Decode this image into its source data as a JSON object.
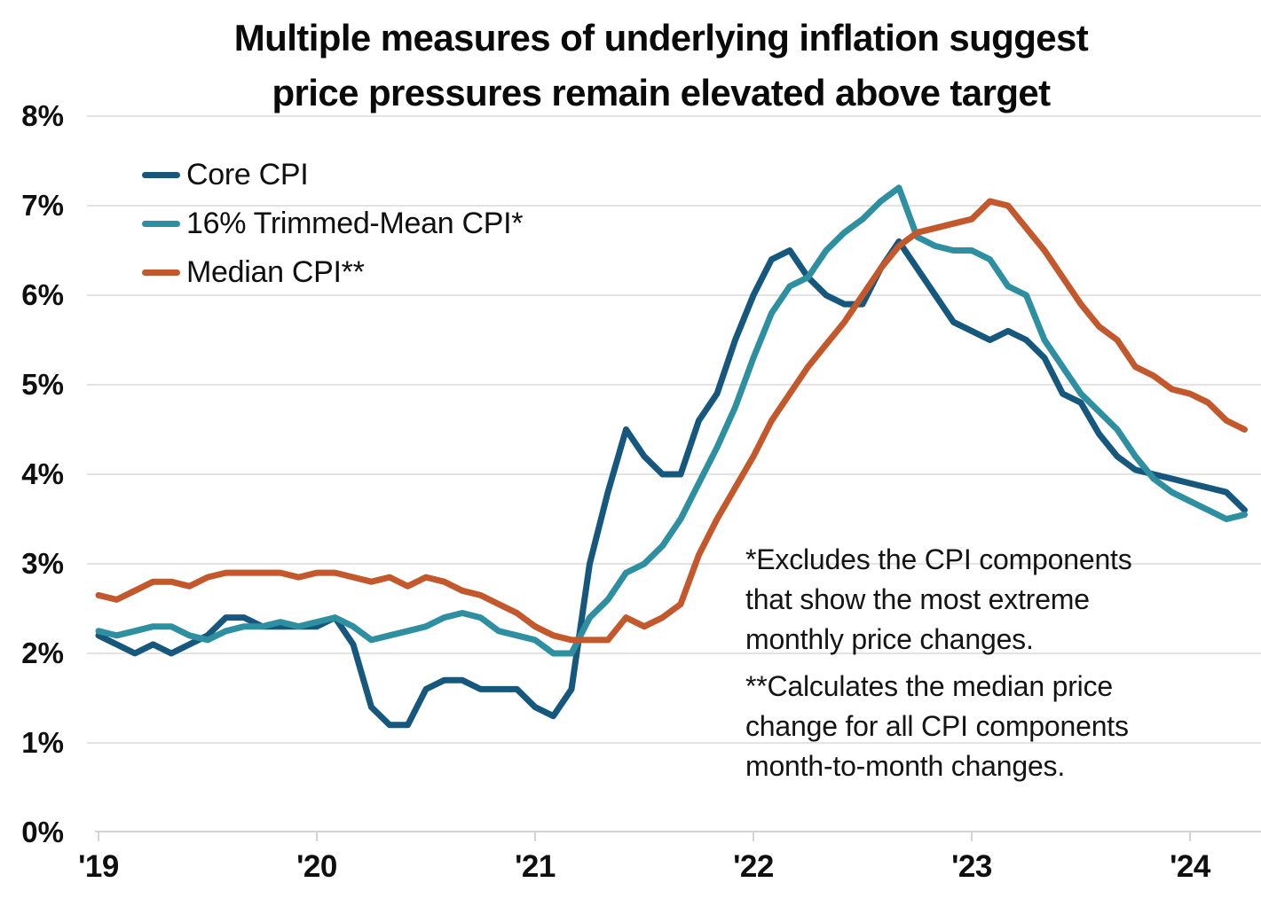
{
  "theme": {
    "background": "#ffffff",
    "gridline_color": "#e3e3e3",
    "axis_color": "#d4d4d4",
    "text_color": "#0f0f0f"
  },
  "chart_data": {
    "type": "line",
    "title_lines": [
      "Multiple measures of underlying inflation suggest",
      "price pressures remain elevated above target"
    ],
    "title": "Multiple measures of underlying inflation suggest price pressures remain elevated above target",
    "x_frequency": "monthly",
    "x_start": "2019-01",
    "x_end": "2024-04",
    "x_tick_labels": [
      "'19",
      "'20",
      "'21",
      "'22",
      "'23",
      "'24"
    ],
    "y_tick_labels": [
      "0%",
      "1%",
      "2%",
      "3%",
      "4%",
      "5%",
      "6%",
      "7%",
      "8%"
    ],
    "ylim": [
      0,
      8
    ],
    "grid": "horizontal",
    "legend_position": "upper-left-inside",
    "series": [
      {
        "name": "Core CPI",
        "color": "#15577D",
        "values": [
          2.2,
          2.1,
          2.0,
          2.1,
          2.0,
          2.1,
          2.2,
          2.4,
          2.4,
          2.3,
          2.3,
          2.3,
          2.3,
          2.4,
          2.1,
          1.4,
          1.2,
          1.2,
          1.6,
          1.7,
          1.7,
          1.6,
          1.6,
          1.6,
          1.4,
          1.3,
          1.6,
          3.0,
          3.8,
          4.5,
          4.2,
          4.0,
          4.0,
          4.6,
          4.9,
          5.5,
          6.0,
          6.4,
          6.5,
          6.2,
          6.0,
          5.9,
          5.9,
          6.3,
          6.6,
          6.3,
          6.0,
          5.7,
          5.6,
          5.5,
          5.6,
          5.5,
          5.3,
          4.9,
          4.8,
          4.45,
          4.2,
          4.05,
          4.0,
          3.95,
          3.9,
          3.85,
          3.8,
          3.6
        ]
      },
      {
        "name": "16% Trimmed-Mean CPI*",
        "color": "#2E8FA1",
        "values": [
          2.25,
          2.2,
          2.25,
          2.3,
          2.3,
          2.2,
          2.15,
          2.25,
          2.3,
          2.3,
          2.35,
          2.3,
          2.35,
          2.4,
          2.3,
          2.15,
          2.2,
          2.25,
          2.3,
          2.4,
          2.45,
          2.4,
          2.25,
          2.2,
          2.15,
          2.0,
          2.0,
          2.4,
          2.6,
          2.9,
          3.0,
          3.2,
          3.5,
          3.9,
          4.3,
          4.75,
          5.3,
          5.8,
          6.1,
          6.2,
          6.5,
          6.7,
          6.85,
          7.05,
          7.2,
          6.65,
          6.55,
          6.5,
          6.5,
          6.4,
          6.1,
          6.0,
          5.5,
          5.2,
          4.9,
          4.7,
          4.5,
          4.2,
          3.95,
          3.8,
          3.7,
          3.6,
          3.5,
          3.55
        ]
      },
      {
        "name": "Median CPI**",
        "color": "#C2582B",
        "values": [
          2.65,
          2.6,
          2.7,
          2.8,
          2.8,
          2.75,
          2.85,
          2.9,
          2.9,
          2.9,
          2.9,
          2.85,
          2.9,
          2.9,
          2.85,
          2.8,
          2.85,
          2.75,
          2.85,
          2.8,
          2.7,
          2.65,
          2.55,
          2.45,
          2.3,
          2.2,
          2.15,
          2.15,
          2.15,
          2.4,
          2.3,
          2.4,
          2.55,
          3.1,
          3.5,
          3.85,
          4.2,
          4.6,
          4.9,
          5.2,
          5.45,
          5.7,
          6.0,
          6.3,
          6.55,
          6.7,
          6.75,
          6.8,
          6.85,
          7.05,
          7.0,
          6.75,
          6.5,
          6.2,
          5.9,
          5.65,
          5.5,
          5.2,
          5.1,
          4.95,
          4.9,
          4.8,
          4.6,
          4.5
        ]
      }
    ],
    "annotations": [
      "*Excludes the CPI components\nthat show the most extreme\nmonthly price changes.",
      "**Calculates the median price\nchange for all CPI components\nmonth-to-month changes."
    ]
  }
}
